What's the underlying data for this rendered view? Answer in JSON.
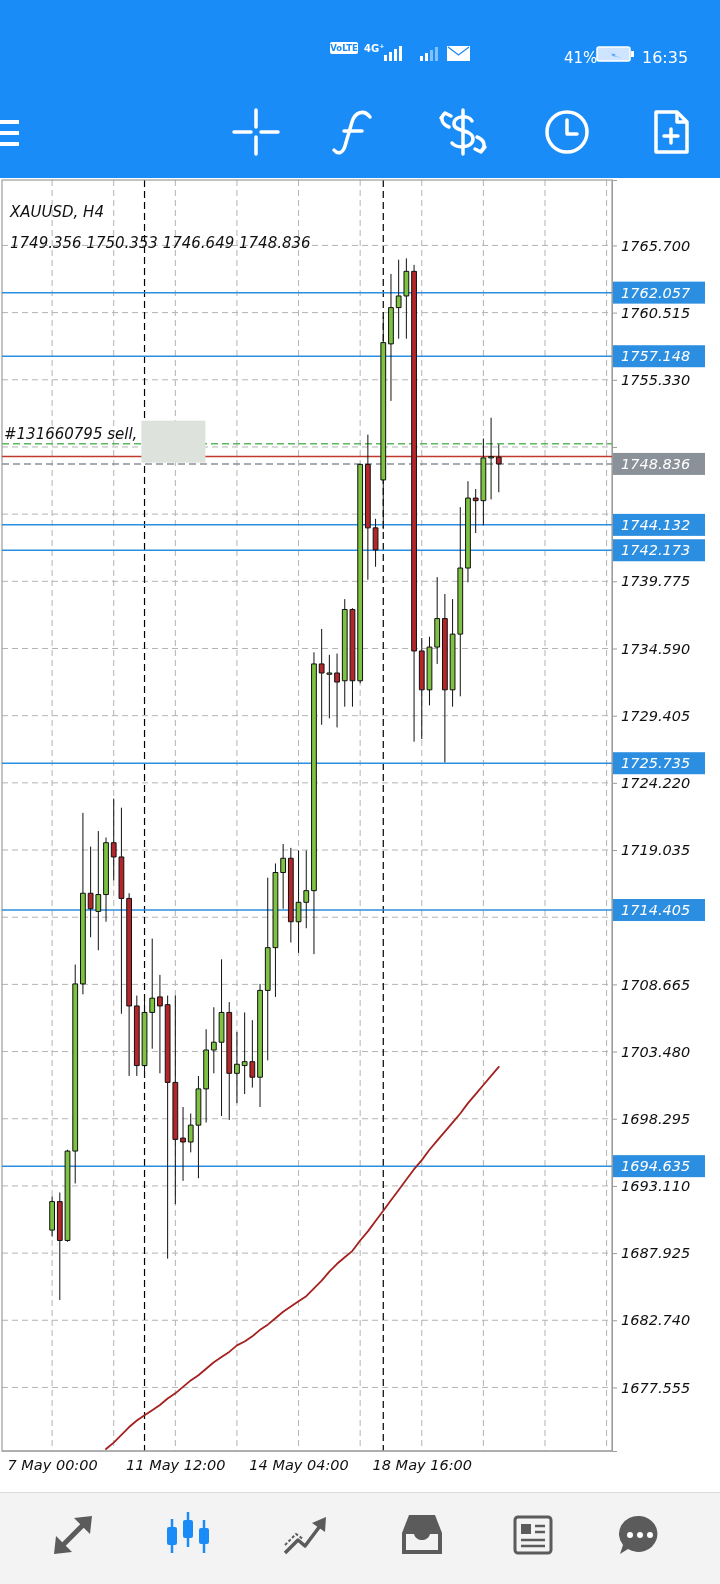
{
  "chart_data": {
    "type": "candlestick",
    "title": "XAUUSD, H4",
    "subtitle": "1749.356 1750.353 1746.649 1748.836",
    "categories": [
      "7 May 00:00",
      null,
      null,
      null,
      null,
      null,
      null,
      null,
      null,
      null,
      null,
      null,
      null,
      null,
      null,
      null,
      "11 May 12:00",
      null,
      null,
      null,
      null,
      null,
      null,
      null,
      null,
      null,
      null,
      null,
      null,
      null,
      null,
      null,
      "14 May 04:00",
      null,
      null,
      null,
      null,
      null,
      null,
      null,
      null,
      null,
      null,
      null,
      null,
      null,
      null,
      null,
      "18 May 16:00",
      null,
      null,
      null,
      null,
      null,
      null,
      null,
      null,
      null,
      null,
      null,
      null,
      null,
      null,
      null,
      null,
      null,
      null,
      null,
      null,
      null,
      null,
      null,
      null
    ],
    "ylim": [
      1672.65,
      1770.75
    ],
    "yticks": [
      {
        "value": 1765.7,
        "label": "1765.700"
      },
      {
        "value": 1760.515,
        "label": "1760.515"
      },
      {
        "value": 1755.33,
        "label": "1755.330"
      },
      {
        "value": 1750.145,
        "label": null
      },
      {
        "value": 1744.96,
        "label": null
      },
      {
        "value": 1739.775,
        "label": "1739.775"
      },
      {
        "value": 1734.59,
        "label": "1734.590"
      },
      {
        "value": 1729.405,
        "label": "1729.405"
      },
      {
        "value": 1724.22,
        "label": "1724.220"
      },
      {
        "value": 1719.035,
        "label": "1719.035"
      },
      {
        "value": 1713.85,
        "label": null
      },
      {
        "value": 1708.665,
        "label": "1708.665"
      },
      {
        "value": 1703.48,
        "label": "1703.480"
      },
      {
        "value": 1698.295,
        "label": "1698.295"
      },
      {
        "value": 1693.11,
        "label": "1693.110"
      },
      {
        "value": 1687.925,
        "label": "1687.925"
      },
      {
        "value": 1682.74,
        "label": "1682.740"
      },
      {
        "value": 1677.555,
        "label": "1677.555"
      }
    ],
    "grid": true,
    "ohlc": [
      [
        1689.7,
        1692.3,
        1689.2,
        1691.9
      ],
      [
        1691.9,
        1692.6,
        1684.3,
        1688.9
      ],
      [
        1688.9,
        1695.9,
        1688.8,
        1695.8
      ],
      [
        1695.8,
        1710.2,
        1693.3,
        1708.7
      ],
      [
        1708.7,
        1721.9,
        1707.9,
        1715.7
      ],
      [
        1715.7,
        1719.3,
        1712.3,
        1714.5
      ],
      [
        1714.3,
        1720.5,
        1711.3,
        1715.6
      ],
      [
        1715.6,
        1720.0,
        1713.5,
        1719.6
      ],
      [
        1719.6,
        1723.0,
        1716.7,
        1718.5
      ],
      [
        1718.5,
        1722.3,
        1706.4,
        1715.3
      ],
      [
        1715.3,
        1715.7,
        1701.6,
        1707.0
      ],
      [
        1707.0,
        1707.8,
        1701.6,
        1702.4
      ],
      [
        1702.4,
        1707.8,
        1701.5,
        1706.5
      ],
      [
        1706.5,
        1712.2,
        1703.7,
        1707.6
      ],
      [
        1707.7,
        1709.4,
        1701.8,
        1707.0
      ],
      [
        1707.1,
        1707.8,
        1687.5,
        1701.1
      ],
      [
        1701.1,
        1707.8,
        1691.7,
        1696.7
      ],
      [
        1696.8,
        1699.2,
        1693.5,
        1696.5
      ],
      [
        1696.5,
        1698.7,
        1695.7,
        1697.8
      ],
      [
        1697.8,
        1701.6,
        1693.7,
        1700.6
      ],
      [
        1700.6,
        1705.2,
        1698.0,
        1703.6
      ],
      [
        1703.6,
        1706.9,
        1701.8,
        1704.2
      ],
      [
        1704.2,
        1710.6,
        1698.5,
        1706.5
      ],
      [
        1706.5,
        1707.3,
        1698.2,
        1701.8
      ],
      [
        1701.8,
        1705.0,
        1699.5,
        1702.5
      ],
      [
        1702.4,
        1706.5,
        1700.2,
        1702.7
      ],
      [
        1702.7,
        1705.9,
        1700.7,
        1701.5
      ],
      [
        1701.5,
        1708.7,
        1699.2,
        1708.2
      ],
      [
        1708.2,
        1716.9,
        1702.8,
        1711.5
      ],
      [
        1711.5,
        1718.0,
        1707.7,
        1717.3
      ],
      [
        1717.3,
        1719.5,
        1714.5,
        1718.4
      ],
      [
        1718.4,
        1719.2,
        1711.9,
        1713.5
      ],
      [
        1713.5,
        1719.0,
        1711.1,
        1715.0
      ],
      [
        1715.0,
        1719.0,
        1713.0,
        1715.9
      ],
      [
        1715.9,
        1734.3,
        1711.0,
        1733.4
      ],
      [
        1733.4,
        1736.1,
        1728.7,
        1732.7
      ],
      [
        1732.6,
        1734.1,
        1729.2,
        1732.7
      ],
      [
        1732.7,
        1734.2,
        1728.5,
        1732.0
      ],
      [
        1732.1,
        1738.4,
        1730.1,
        1737.6
      ],
      [
        1737.6,
        1737.7,
        1730.1,
        1732.1
      ],
      [
        1732.1,
        1748.8,
        1731.9,
        1748.8
      ],
      [
        1748.8,
        1751.1,
        1739.9,
        1743.9
      ],
      [
        1743.9,
        1744.6,
        1740.9,
        1742.2
      ],
      [
        1747.6,
        1760.2,
        1743.8,
        1758.2
      ],
      [
        1758.1,
        1763.5,
        1753.7,
        1760.9
      ],
      [
        1760.9,
        1764.6,
        1758.5,
        1761.8
      ],
      [
        1761.8,
        1764.7,
        1758.5,
        1763.7
      ],
      [
        1763.7,
        1764.2,
        1727.4,
        1734.4
      ],
      [
        1734.4,
        1735.4,
        1727.6,
        1731.4
      ],
      [
        1731.4,
        1735.5,
        1730.2,
        1734.7
      ],
      [
        1734.7,
        1740.1,
        1733.4,
        1736.9
      ],
      [
        1736.9,
        1738.8,
        1725.8,
        1731.4
      ],
      [
        1731.4,
        1738.4,
        1730.1,
        1735.7
      ],
      [
        1735.7,
        1745.5,
        1730.9,
        1740.8
      ],
      [
        1740.8,
        1747.5,
        1739.7,
        1746.2
      ],
      [
        1746.2,
        1746.9,
        1743.5,
        1746.0
      ],
      [
        1746.0,
        1750.8,
        1744.1,
        1749.3
      ],
      [
        1749.3,
        1752.4,
        1746.1,
        1749.4
      ],
      [
        1749.356,
        1750.353,
        1746.649,
        1748.836
      ],
      null,
      null,
      null,
      null,
      null,
      null,
      null,
      null,
      null,
      null,
      null,
      null,
      null,
      null
    ],
    "colors": [
      "#7ec242",
      "#b3262a",
      "#7ec242",
      "#7ec242",
      "#7ec242",
      "#b3262a",
      "#7ec242",
      "#7ec242",
      "#b3262a",
      "#b3262a",
      "#b3262a",
      "#b3262a",
      "#7ec242",
      "#7ec242",
      "#b3262a",
      "#b3262a",
      "#b3262a",
      "#b3262a",
      "#7ec242",
      "#7ec242",
      "#7ec242",
      "#7ec242",
      "#7ec242",
      "#b3262a",
      "#7ec242",
      "#7ec242",
      "#b3262a",
      "#7ec242",
      "#7ec242",
      "#7ec242",
      "#7ec242",
      "#b3262a",
      "#7ec242",
      "#7ec242",
      "#7ec242",
      "#b3262a",
      "#7ec242",
      "#b3262a",
      "#7ec242",
      "#b3262a",
      "#7ec242",
      "#b3262a",
      "#b3262a",
      "#7ec242",
      "#7ec242",
      "#7ec242",
      "#7ec242",
      "#b3262a",
      "#b3262a",
      "#7ec242",
      "#7ec242",
      "#b3262a",
      "#7ec242",
      "#7ec242",
      "#7ec242",
      "#b3262a",
      "#7ec242",
      "#7ec242",
      "#b3262a",
      null,
      null,
      null,
      null,
      null,
      null,
      null,
      null,
      null,
      null,
      null,
      null,
      null,
      null
    ],
    "series": [
      {
        "type": "line",
        "color": "#a3211f",
        "values": [
          null,
          null,
          null,
          null,
          null,
          null,
          null,
          1672.8,
          1673.3,
          1673.9,
          1674.5,
          1675.0,
          1675.4,
          1675.8,
          1676.2,
          1676.7,
          1677.1,
          1677.6,
          1678.1,
          1678.5,
          1679.0,
          1679.5,
          1679.9,
          1680.3,
          1680.8,
          1681.1,
          1681.5,
          1682.0,
          1682.4,
          1682.9,
          1683.4,
          1683.8,
          1684.2,
          1684.6,
          1685.2,
          1685.8,
          1686.5,
          1687.1,
          1687.6,
          1688.1,
          1688.9,
          1689.6,
          1690.4,
          1691.2,
          1692.0,
          1692.8,
          1693.6,
          1694.4,
          1695.1,
          1695.9,
          1696.6,
          1697.3,
          1698.0,
          1698.7,
          1699.5,
          1700.2,
          1700.9,
          1701.6,
          1702.3,
          null,
          null,
          null,
          null,
          null,
          null,
          null,
          null,
          null,
          null,
          null,
          null,
          null,
          null
        ]
      }
    ],
    "ref_lines": [
      {
        "axis": "y",
        "value": 1762.057,
        "label": "1762.057",
        "color": "#2b8ee0"
      },
      {
        "axis": "y",
        "value": 1757.148,
        "label": "1757.148",
        "color": "#2b8ee0"
      },
      {
        "axis": "y",
        "value": 1744.132,
        "label": "1744.132",
        "color": "#2b8ee0"
      },
      {
        "axis": "y",
        "value": 1742.173,
        "label": "1742.173",
        "color": "#2b8ee0"
      },
      {
        "axis": "y",
        "value": 1725.735,
        "label": "1725.735",
        "color": "#2b8ee0"
      },
      {
        "axis": "y",
        "value": 1714.405,
        "label": "1714.405",
        "color": "#2b8ee0"
      },
      {
        "axis": "y",
        "value": 1694.635,
        "label": "1694.635",
        "color": "#2b8ee0"
      },
      {
        "axis": "y",
        "value": 1748.836,
        "label": "1748.836",
        "color": "#8a9199",
        "line_style": "dashed"
      },
      {
        "axis": "y",
        "value": 1749.4,
        "color": "#c0392b"
      },
      {
        "axis": "y",
        "value": 1750.4,
        "color": "#5cb85c",
        "line_style": "dashed"
      }
    ],
    "annotations": [
      "VoLTE",
      "4G⁺",
      "41%",
      "16:35",
      {
        "text": "#131660795 sell,",
        "y": 1750.4
      }
    ]
  }
}
